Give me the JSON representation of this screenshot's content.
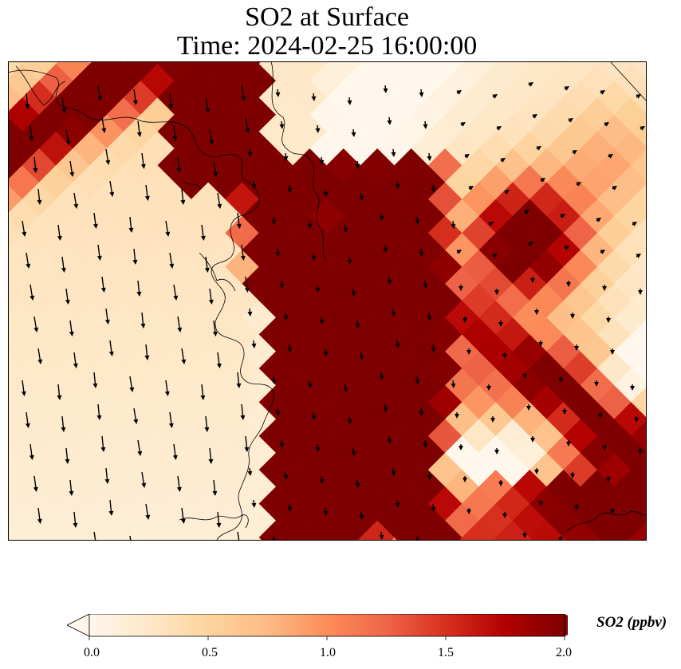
{
  "title": {
    "line1": "SO2 at Surface",
    "line2": "Time: 2024-02-25 16:00:00"
  },
  "map": {
    "variable": "SO2",
    "level": "Surface",
    "colormap": "OrRd",
    "colormap_stops": [
      "#fff7ec",
      "#fee8c8",
      "#fdd49e",
      "#fdbb84",
      "#fc8d59",
      "#ef6548",
      "#d7301f",
      "#b30000",
      "#7f0000"
    ],
    "overlays": [
      "coastline",
      "wind-vectors"
    ],
    "wind_arrow_color": "#000000",
    "coastline_color": "#000000"
  },
  "colorbar": {
    "label": "SO2 (ppbv)",
    "min": 0.0,
    "max": 2.0,
    "extend": "both",
    "ticks": [
      "0.0",
      "0.5",
      "1.0",
      "1.5",
      "2.0"
    ],
    "tick_values": [
      0.0,
      0.5,
      1.0,
      1.5,
      2.0
    ]
  }
}
